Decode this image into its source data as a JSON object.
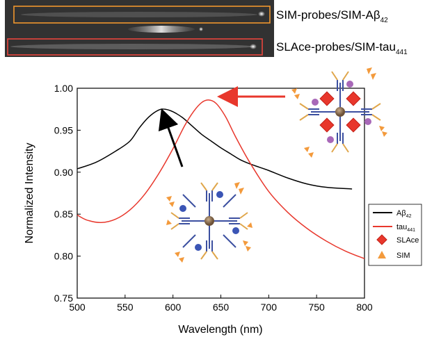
{
  "gel_strip": {
    "lanes": [
      {
        "label_main": "SIM-probes/SIM-A",
        "label_sym": "β",
        "label_sub": "42",
        "box_color": "#f0962e"
      },
      {
        "label_main": "SLAce-probes/SIM-tau",
        "label_sym": "",
        "label_sub": "441",
        "box_color": "#e8453c"
      }
    ]
  },
  "legend": {
    "entries": [
      {
        "main": "Aβ",
        "sub": "42",
        "color": "#000000"
      },
      {
        "main": "tau",
        "sub": "441",
        "color": "#e8372c"
      },
      {
        "main": "SLAce",
        "marker": "diamond",
        "color": "#e8372c"
      },
      {
        "main": "SIM",
        "marker": "triangle",
        "color": "#f39a3c"
      }
    ]
  },
  "chart_data": {
    "type": "line",
    "xlabel": "Wavelength (nm)",
    "ylabel": "Normalized Intensity",
    "xlim": [
      500,
      800
    ],
    "ylim": [
      0.75,
      1.0
    ],
    "xticks": [
      500,
      550,
      600,
      650,
      700,
      750,
      800
    ],
    "yticks": [
      0.75,
      0.8,
      0.85,
      0.9,
      0.95,
      1.0
    ],
    "xtick_labels": [
      "500",
      "550",
      "600",
      "650",
      "700",
      "750",
      "800"
    ],
    "ytick_labels": [
      "0.75",
      "0.80",
      "0.85",
      "0.90",
      "0.95",
      "1.00"
    ],
    "grid": false,
    "legend_position": "bottom-right",
    "series": [
      {
        "name": "Aβ42",
        "color": "#000000",
        "x": [
          500,
          520,
          540,
          555,
          565,
          575,
          585,
          592,
          600,
          610,
          620,
          630,
          640,
          650,
          660,
          670,
          680,
          690,
          700,
          720,
          740,
          760,
          787
        ],
        "y": [
          0.904,
          0.912,
          0.925,
          0.937,
          0.953,
          0.966,
          0.974,
          0.975,
          0.972,
          0.965,
          0.955,
          0.945,
          0.937,
          0.929,
          0.922,
          0.915,
          0.91,
          0.906,
          0.902,
          0.893,
          0.886,
          0.882,
          0.88
        ]
      },
      {
        "name": "tau441",
        "color": "#e8372c",
        "x": [
          500,
          510,
          525,
          540,
          555,
          570,
          585,
          600,
          612,
          622,
          630,
          637,
          645,
          655,
          665,
          680,
          700,
          720,
          740,
          760,
          780,
          800
        ],
        "y": [
          0.849,
          0.843,
          0.84,
          0.844,
          0.855,
          0.873,
          0.898,
          0.928,
          0.955,
          0.973,
          0.983,
          0.986,
          0.982,
          0.966,
          0.943,
          0.912,
          0.877,
          0.852,
          0.833,
          0.818,
          0.806,
          0.797
        ]
      }
    ]
  },
  "colors": {
    "black_line": "#000000",
    "red_line": "#e8372c",
    "antibody_blue": "#3b4fa0",
    "bead_brown": "#8c6e4f",
    "probe_orange": "#f39a3c"
  }
}
